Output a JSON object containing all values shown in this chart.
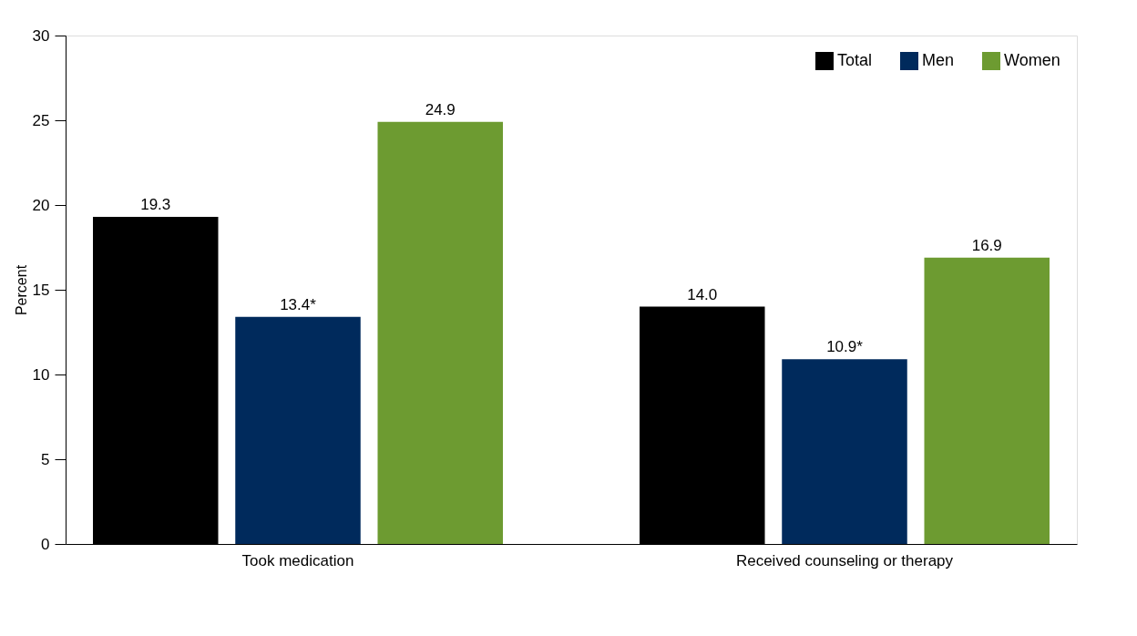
{
  "chart_data": {
    "type": "bar",
    "ylabel": "Percent",
    "categories": [
      "Took medication",
      "Received counseling or therapy"
    ],
    "series": [
      {
        "name": "Total",
        "color": "#000000",
        "values": [
          19.3,
          14.0
        ],
        "value_labels": [
          "19.3",
          "14.0"
        ]
      },
      {
        "name": "Men",
        "color": "#002a5c",
        "values": [
          13.4,
          10.9
        ],
        "value_labels": [
          "13.4*",
          "10.9*"
        ]
      },
      {
        "name": "Women",
        "color": "#6d9b31",
        "values": [
          24.9,
          16.9
        ],
        "value_labels": [
          "24.9",
          "16.9"
        ]
      }
    ],
    "ylim": [
      0,
      30
    ],
    "yticks": [
      0,
      5,
      10,
      15,
      20,
      25,
      30
    ],
    "grid": false,
    "legend": "top right"
  }
}
